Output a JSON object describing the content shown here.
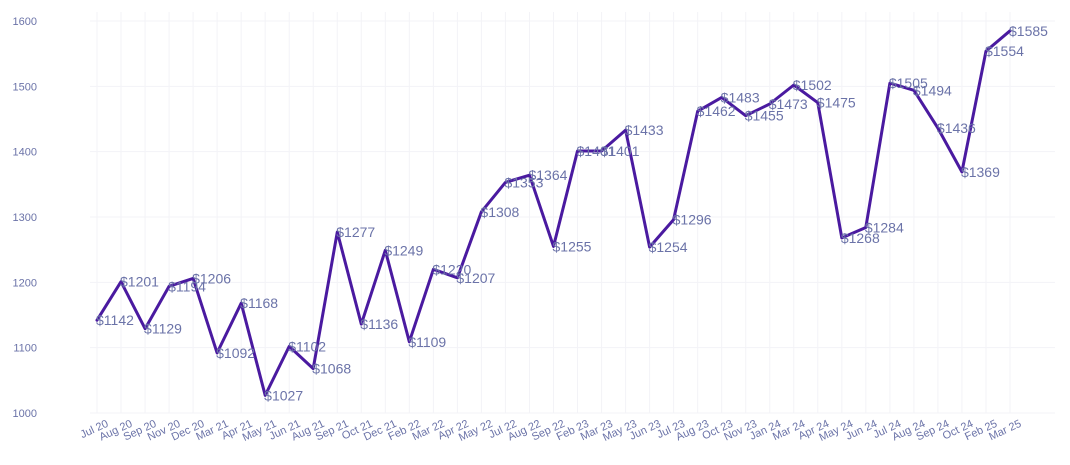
{
  "chart_data": {
    "type": "line",
    "title": "",
    "xlabel": "",
    "ylabel": "",
    "ylim": [
      1000,
      1600
    ],
    "yticks": [
      1000,
      1100,
      1200,
      1300,
      1400,
      1500,
      1600
    ],
    "grid": true,
    "legend": "none",
    "colors": {
      "line": "#4a1aa0",
      "text": "#6b73a8",
      "grid": "#f3f3f7"
    },
    "label_prefix": "$",
    "x": [
      "Jul 20",
      "Aug 20",
      "Sep 20",
      "Nov 20",
      "Dec 20",
      "Mar 21",
      "Apr 21",
      "May 21",
      "Jun 21",
      "Aug 21",
      "Sep 21",
      "Oct 21",
      "Dec 21",
      "Feb 22",
      "Mar 22",
      "Apr 22",
      "May 22",
      "Jul 22",
      "Aug 22",
      "Sep 22",
      "Feb 23",
      "Mar 23",
      "May 23",
      "Jun 23",
      "Jul 23",
      "Aug 23",
      "Oct 23",
      "Nov 23",
      "Jan 24",
      "Mar 24",
      "Apr 24",
      "May 24",
      "Jun 24",
      "Jul 24",
      "Aug 24",
      "Sep 24",
      "Oct 24",
      "Feb 25",
      "Mar 25"
    ],
    "series": [
      {
        "values": [
          1142,
          1201,
          1129,
          1194,
          1206,
          1092,
          1168,
          1027,
          1102,
          1068,
          1277,
          1136,
          1249,
          1109,
          1220,
          1207,
          1308,
          1353,
          1364,
          1255,
          1401,
          1401,
          1433,
          1254,
          1296,
          1462,
          1483,
          1455,
          1473,
          1502,
          1475,
          1268,
          1284,
          1505,
          1494,
          1436,
          1369,
          1554,
          1585
        ]
      }
    ]
  }
}
